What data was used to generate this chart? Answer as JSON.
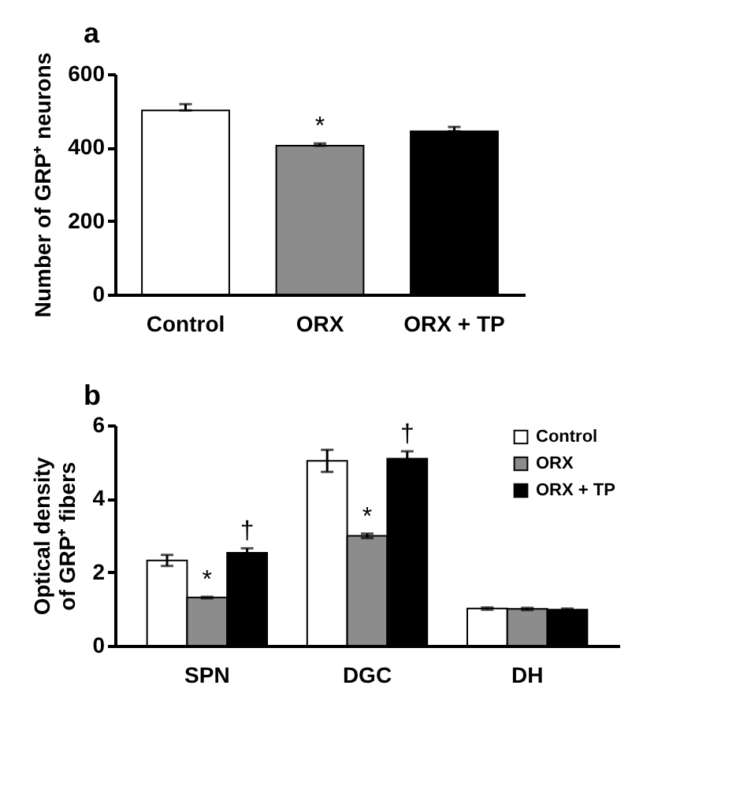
{
  "chart_data": [
    {
      "type": "bar",
      "title": "a",
      "ylabel": "Number of GRP⁺ neurons",
      "categories": [
        "Control",
        "ORX",
        "ORX + TP"
      ],
      "values": [
        501,
        405,
        444
      ],
      "colors": [
        "#ffffff",
        "#8c8c8c",
        "#000000"
      ],
      "errors": [
        [
          501,
          518
        ],
        [
          405,
          411
        ],
        [
          444,
          456
        ]
      ],
      "ylim": [
        0,
        600
      ],
      "yticks": [
        0,
        200,
        400,
        600
      ],
      "annotations": [
        {
          "text": "*",
          "x": "ORX",
          "y": 411
        }
      ]
    },
    {
      "type": "bar",
      "title": "b",
      "ylabel": "Optical density of GRP⁺ fibers",
      "categories": [
        "SPN",
        "DGC",
        "DH"
      ],
      "ylim": [
        0,
        6
      ],
      "yticks": [
        0,
        2,
        4,
        6
      ],
      "legend": "top right",
      "series": [
        {
          "name": "Control",
          "color": "#ffffff",
          "values": [
            2.32,
            5.03,
            1.01
          ],
          "errors": [
            0.15,
            0.3,
            0.03
          ]
        },
        {
          "name": "ORX",
          "color": "#8c8c8c",
          "values": [
            1.31,
            2.99,
            1.0
          ],
          "errors": [
            0.02,
            0.06,
            0.03
          ]
        },
        {
          "name": "ORX + TP",
          "color": "#000000",
          "values": [
            2.53,
            5.09,
            0.98
          ],
          "errors": [
            0.12,
            0.2,
            0.03
          ]
        }
      ],
      "annotations": [
        {
          "text": "*",
          "x": "SPN",
          "y": 1.33
        },
        "†",
        {
          "text": "*",
          "x": "DGC",
          "y": 3.05
        },
        "†"
      ]
    }
  ]
}
